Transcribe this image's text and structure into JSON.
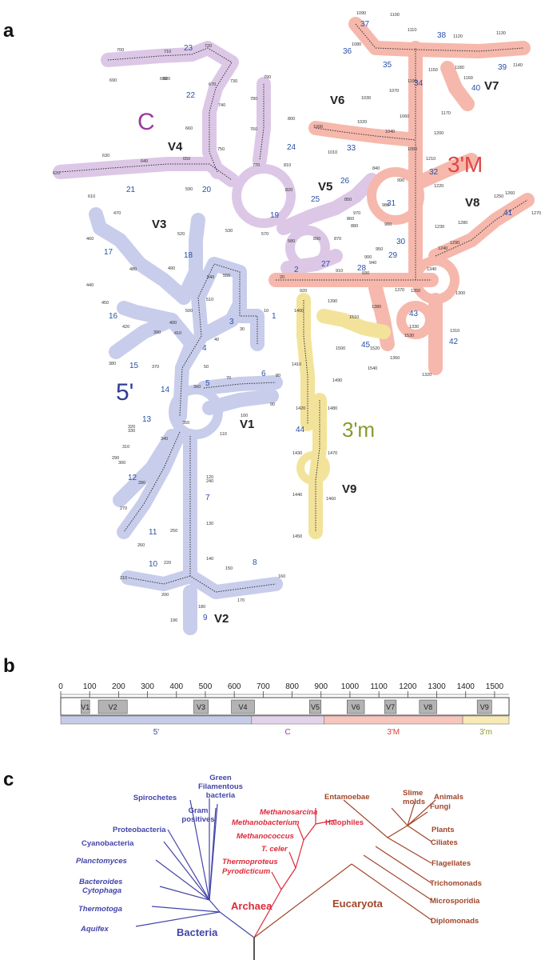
{
  "panels": {
    "a": "a",
    "b": "b",
    "c": "c"
  },
  "colors": {
    "five": "#2f3d96",
    "c": "#9b3a9e",
    "three_M": "#e04545",
    "three_m": "#8a9a2a",
    "bacteria": "#4444aa",
    "archaea": "#dd2a3a",
    "eucarya": "#a0462a"
  },
  "panel_a": {
    "domain_labels": {
      "five": "5'",
      "c": "C",
      "three_M": "3'M",
      "three_m": "3'm"
    },
    "variable_labels": [
      "V1",
      "V2",
      "V3",
      "V4",
      "V5",
      "V6",
      "V7",
      "V8",
      "V9"
    ],
    "helix_numbers": [
      "1",
      "2",
      "3",
      "4",
      "5",
      "6",
      "7",
      "8",
      "9",
      "10",
      "11",
      "12",
      "13",
      "14",
      "15",
      "16",
      "17",
      "18",
      "19",
      "20",
      "21",
      "22",
      "23",
      "24",
      "25",
      "26",
      "27",
      "28",
      "29",
      "30",
      "31",
      "32",
      "33",
      "34",
      "35",
      "36",
      "37",
      "38",
      "39",
      "40",
      "41",
      "42",
      "43",
      "44",
      "45"
    ],
    "position_numbers": [
      "10",
      "20",
      "30",
      "40",
      "50",
      "70",
      "80",
      "90",
      "100",
      "110",
      "120",
      "130",
      "140",
      "150",
      "160",
      "170",
      "180",
      "190",
      "200",
      "210",
      "220",
      "240",
      "250",
      "260",
      "270",
      "280",
      "290",
      "300",
      "310",
      "320",
      "330",
      "340",
      "350",
      "360",
      "370",
      "380",
      "390",
      "400",
      "410",
      "420",
      "440",
      "450",
      "460",
      "470",
      "480",
      "490",
      "500",
      "510",
      "520",
      "530",
      "540",
      "550",
      "570",
      "580",
      "590",
      "600",
      "610",
      "620",
      "630",
      "640",
      "650",
      "660",
      "670",
      "680",
      "690",
      "700",
      "710",
      "720",
      "730",
      "740",
      "750",
      "760",
      "770",
      "780",
      "790",
      "800",
      "810",
      "820",
      "840",
      "850",
      "860",
      "870",
      "880",
      "890",
      "900",
      "910",
      "920",
      "930",
      "940",
      "950",
      "960",
      "970",
      "980",
      "990",
      "1000",
      "1010",
      "1020",
      "1030",
      "1040",
      "1050",
      "1060",
      "1070",
      "1080",
      "1090",
      "1100",
      "1110",
      "1120",
      "1130",
      "1140",
      "1150",
      "1160",
      "1170",
      "1180",
      "1190",
      "1200",
      "1210",
      "1220",
      "1230",
      "1240",
      "1250",
      "1260",
      "1270",
      "1280",
      "1290",
      "1300",
      "1310",
      "1320",
      "1330",
      "1340",
      "1350",
      "1360",
      "1370",
      "1380",
      "1390",
      "1400",
      "1410",
      "1420",
      "1430",
      "1440",
      "1450",
      "1460",
      "1470",
      "1480",
      "1490",
      "1500",
      "1510",
      "1520",
      "1530",
      "1540"
    ]
  },
  "panel_b": {
    "axis_ticks": [
      "0",
      "100",
      "200",
      "300",
      "400",
      "500",
      "600",
      "700",
      "800",
      "900",
      "1000",
      "1100",
      "1200",
      "1300",
      "1400",
      "1500"
    ],
    "axis_max": 1550,
    "variable_regions": [
      {
        "name": "V1",
        "start": 70,
        "end": 100
      },
      {
        "name": "V2",
        "start": 130,
        "end": 230
      },
      {
        "name": "V3",
        "start": 460,
        "end": 510
      },
      {
        "name": "V4",
        "start": 590,
        "end": 670
      },
      {
        "name": "V5",
        "start": 860,
        "end": 900
      },
      {
        "name": "V6",
        "start": 990,
        "end": 1050
      },
      {
        "name": "V7",
        "start": 1120,
        "end": 1160
      },
      {
        "name": "V8",
        "start": 1240,
        "end": 1300
      },
      {
        "name": "V9",
        "start": 1440,
        "end": 1490
      }
    ],
    "domains": [
      {
        "name": "5'",
        "start": 0,
        "end": 660,
        "color": "#c6cbe8",
        "text_color": "#3c46a0"
      },
      {
        "name": "C",
        "start": 660,
        "end": 910,
        "color": "#e3d3ea",
        "text_color": "#9b3a9e"
      },
      {
        "name": "3'M",
        "start": 910,
        "end": 1390,
        "color": "#f7c5bb",
        "text_color": "#d8453f"
      },
      {
        "name": "3'm",
        "start": 1390,
        "end": 1550,
        "color": "#f7eab5",
        "text_color": "#8a9a2a"
      }
    ]
  },
  "panel_c": {
    "domains": {
      "bacteria": "Bacteria",
      "archaea": "Archaea",
      "eucarya": "Eucaryota"
    },
    "bacteria": [
      "Green",
      "Filamentous",
      "bacteria",
      "Spirochetes",
      "Gram",
      "positives",
      "Proteobacteria",
      "Cyanobacteria",
      "Planctomyces",
      "Bacteroides",
      "Cytophaga",
      "Thermotoga",
      "Aquifex"
    ],
    "archaea": [
      "Methanosarcina",
      "Methanobacterium",
      "Halophiles",
      "Methanococcus",
      "T. celer",
      "Thermoproteus",
      "Pyrodicticum"
    ],
    "eucarya": [
      "Entamoebae",
      "Slime",
      "molds",
      "Animals",
      "Fungi",
      "Plants",
      "Ciliates",
      "Flagellates",
      "Trichomonads",
      "Microsporidia",
      "Diplomonads"
    ]
  }
}
